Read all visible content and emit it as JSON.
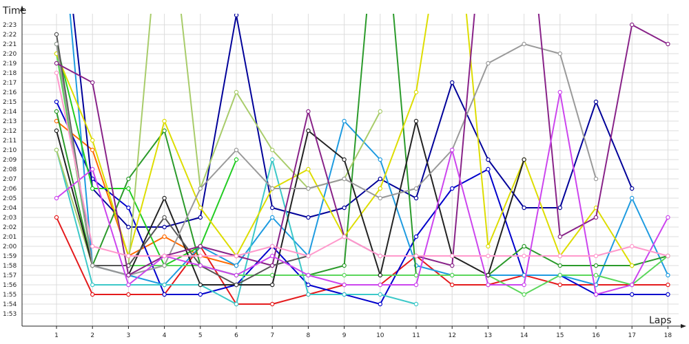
{
  "chart_data": {
    "type": "line",
    "xlabel": "Laps",
    "ylabel": "Time",
    "x": [
      1,
      2,
      3,
      4,
      5,
      6,
      7,
      8,
      9,
      10,
      11,
      12,
      13,
      14,
      15,
      16,
      17,
      18
    ],
    "x_ticks": [
      "1",
      "2",
      "3",
      "4",
      "5",
      "6",
      "7",
      "8",
      "9",
      "10",
      "11",
      "12",
      "13",
      "14",
      "15",
      "16",
      "17",
      "18"
    ],
    "y_range_seconds": [
      7950,
      8630
    ],
    "y_ticks": [
      "1:53",
      "1:54",
      "1:55",
      "1:56",
      "1:57",
      "1:58",
      "1:59",
      "2:00",
      "2:01",
      "2:02",
      "2:03",
      "2:04",
      "2:05",
      "2:06",
      "2:07",
      "2:08",
      "2:09",
      "2:10",
      "2:11",
      "2:12",
      "2:13",
      "2:14",
      "2:15",
      "2:16",
      "2:17",
      "2:18",
      "2:19",
      "2:20",
      "2:21",
      "2:22",
      "2:23"
    ],
    "grid": true,
    "legend": "none",
    "series": [
      {
        "color": "#e41a1c",
        "values": [
          "2:03",
          "1:55",
          "1:55",
          "1:55",
          "2:00",
          "1:54",
          "1:54",
          "1:55",
          "1:56",
          "1:56",
          "1:59",
          "1:56",
          "1:56",
          "1:57",
          "1:56",
          "1:56",
          "1:56",
          "1:56"
        ]
      },
      {
        "color": "#ff6a00",
        "values": [
          "2:13",
          "2:10",
          "1:59",
          "2:01",
          "1:59",
          "1:58",
          null,
          null,
          null,
          null,
          null,
          null,
          null,
          null,
          null,
          null,
          null,
          null
        ]
      },
      {
        "color": "#0000cc",
        "values": [
          "2:15",
          "2:07",
          "2:04",
          "1:55",
          "1:55",
          "1:56",
          "2:00",
          "1:56",
          "1:55",
          "1:54",
          "2:01",
          "2:06",
          "2:08",
          "1:57",
          "1:57",
          "1:55",
          "1:55",
          "1:55"
        ]
      },
      {
        "color": "#000099",
        "values": [
          "2:40",
          "2:06",
          "2:02",
          "2:02",
          "2:03",
          "2:24",
          "2:04",
          "2:03",
          "2:04",
          "2:07",
          "2:05",
          "2:17",
          "2:09",
          "2:04",
          "2:04",
          "2:15",
          "2:06",
          null
        ]
      },
      {
        "color": "#1e9be0",
        "values": [
          "2:40",
          "1:58",
          "1:57",
          "1:56",
          "2:00",
          "1:58",
          "2:03",
          "1:59",
          "2:13",
          "2:09",
          "1:58",
          "1:57",
          "1:57",
          "1:57",
          "1:57",
          "1:56",
          "2:05",
          "1:57"
        ]
      },
      {
        "color": "#3cc8c8",
        "values": [
          "2:10",
          "1:56",
          "1:56",
          "1:56",
          "1:56",
          "1:54",
          "2:09",
          "1:55",
          "1:55",
          "1:55",
          "1:54",
          null,
          null,
          null,
          null,
          null,
          null,
          null
        ]
      },
      {
        "color": "#2a9a2a",
        "values": [
          "2:14",
          "1:58",
          "2:07",
          "2:12",
          "1:58",
          "1:57",
          "1:57",
          "1:57",
          "1:58",
          "2:40",
          "1:57",
          "1:57",
          "1:57",
          "2:00",
          "1:58",
          "1:58",
          "1:58",
          "1:59"
        ]
      },
      {
        "color": "#22cc22",
        "values": [
          "2:21",
          "2:06",
          "2:06",
          "1:58",
          "2:00",
          "2:09",
          null,
          null,
          null,
          null,
          null,
          null,
          null,
          null,
          null,
          null,
          null,
          null
        ]
      },
      {
        "color": "#5ad65a",
        "values": [
          "2:20",
          "1:58",
          "1:58",
          "1:58",
          "1:58",
          "1:57",
          "1:57",
          "1:57",
          "1:57",
          "1:57",
          "1:57",
          "1:57",
          "1:57",
          "1:55",
          "1:57",
          "1:57",
          "1:56",
          "1:59"
        ]
      },
      {
        "color": "#dddd00",
        "values": [
          "2:20",
          "2:11",
          "1:59",
          "2:13",
          "2:04",
          "1:59",
          "2:06",
          "2:08",
          "2:01",
          "2:06",
          "2:16",
          "2:40",
          "2:00",
          "2:09",
          "1:59",
          "2:04",
          "1:58",
          null
        ]
      },
      {
        "color": "#a8cc6a",
        "values": [
          "2:10",
          "1:58",
          "1:58",
          "2:40",
          "2:06",
          "2:16",
          "2:10",
          "2:06",
          "2:07",
          "2:14",
          null,
          null,
          null,
          null,
          null,
          null,
          null,
          null
        ]
      },
      {
        "color": "#222222",
        "values": [
          "2:12",
          "1:58",
          "1:57",
          "2:05",
          "1:56",
          "1:56",
          "1:56",
          "2:12",
          "2:09",
          "1:57",
          "2:13",
          "1:59",
          "1:57",
          "2:09",
          null,
          null,
          null,
          null
        ]
      },
      {
        "color": "#555555",
        "values": [
          "2:22",
          "1:58",
          "1:58",
          "2:03",
          "1:58",
          "1:56",
          "1:58",
          "1:59",
          null,
          null,
          null,
          null,
          null,
          null,
          null,
          null,
          null,
          null
        ]
      },
      {
        "color": "#999999",
        "values": [
          "2:21",
          "1:58",
          "1:57",
          "1:58",
          "2:06",
          "2:10",
          "2:06",
          "2:06",
          "2:07",
          "2:05",
          "2:06",
          "2:10",
          "2:19",
          "2:21",
          "2:20",
          "2:07",
          null,
          null
        ]
      },
      {
        "color": "#882288",
        "values": [
          "2:19",
          "2:17",
          "1:57",
          "1:59",
          "2:00",
          "1:59",
          "1:58",
          "2:14",
          "2:01",
          "1:59",
          "1:59",
          "1:58",
          "2:40",
          "2:40",
          "2:01",
          "2:03",
          "2:23",
          "2:21"
        ]
      },
      {
        "color": "#cc44ee",
        "values": [
          "2:05",
          "2:08",
          "1:56",
          "1:59",
          "1:58",
          "1:57",
          "1:59",
          "1:57",
          "1:56",
          "1:56",
          "1:56",
          "2:10",
          "1:56",
          "1:56",
          "2:16",
          "1:55",
          "1:56",
          "2:03"
        ]
      },
      {
        "color": "#ff99cc",
        "values": [
          "2:18",
          "2:00",
          "1:59",
          "1:59",
          "1:59",
          "1:59",
          "2:00",
          "1:59",
          "2:01",
          "1:59",
          "1:59",
          "1:59",
          "1:59",
          "1:59",
          "1:59",
          "1:59",
          "2:00",
          "1:59"
        ]
      }
    ]
  }
}
